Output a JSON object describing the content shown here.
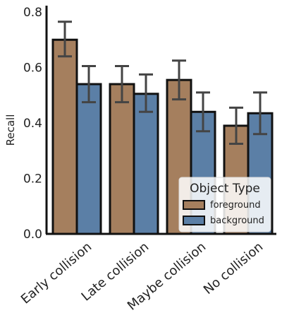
{
  "chart_data": {
    "type": "bar",
    "ylabel": "Recall",
    "ylim": [
      0,
      0.8
    ],
    "yticks": [
      "0.0",
      "0.2",
      "0.4",
      "0.6",
      "0.8"
    ],
    "categories": [
      "Early collision",
      "Late collision",
      "Maybe collision",
      "No collision"
    ],
    "series": [
      {
        "name": "foreground",
        "color": "#A57F5E",
        "values": [
          0.7,
          0.54,
          0.555,
          0.39
        ],
        "error_low": [
          0.64,
          0.475,
          0.485,
          0.325
        ],
        "error_high": [
          0.765,
          0.605,
          0.625,
          0.455
        ]
      },
      {
        "name": "background",
        "color": "#5B7FA6",
        "values": [
          0.54,
          0.505,
          0.44,
          0.435
        ],
        "error_low": [
          0.475,
          0.44,
          0.37,
          0.36
        ],
        "error_high": [
          0.605,
          0.575,
          0.51,
          0.51
        ]
      }
    ],
    "legend": {
      "title": "Object Type",
      "placement": "lower-right"
    },
    "grid": false,
    "error_bar_color": "#444444",
    "bar_edge_color": "#111111"
  }
}
